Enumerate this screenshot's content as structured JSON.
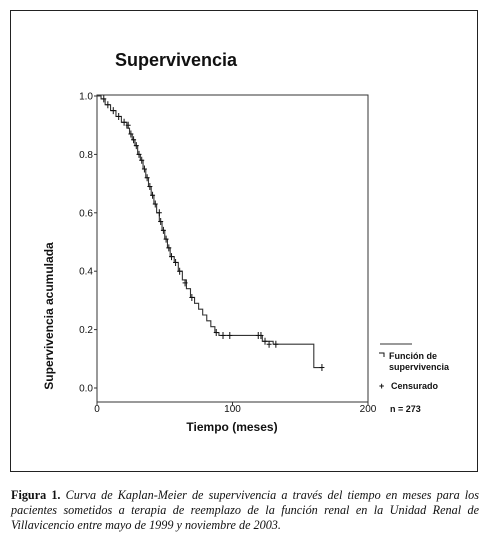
{
  "chart_data": {
    "type": "line",
    "title": "Supervivencia",
    "xlabel": "Tiempo (meses)",
    "ylabel": "Supervivencia acumulada",
    "xlim": [
      0,
      200
    ],
    "ylim": [
      0,
      1
    ],
    "x_ticks": [
      "0",
      "100",
      "200"
    ],
    "y_ticks": [
      "0.0",
      "0.2",
      "0.4",
      "0.6",
      "0.8",
      "1.0"
    ],
    "grid": false,
    "legend_position": "right",
    "line_color": "#333333",
    "legend": {
      "function_label": [
        "Función de",
        "supervivencia"
      ],
      "censored_label": "Censurado",
      "n_label": "n = 273"
    },
    "series": [
      {
        "name": "Función de supervivencia",
        "step": true,
        "points": [
          [
            0,
            1.0
          ],
          [
            3,
            0.99
          ],
          [
            6,
            0.97
          ],
          [
            10,
            0.95
          ],
          [
            14,
            0.93
          ],
          [
            18,
            0.91
          ],
          [
            22,
            0.89
          ],
          [
            24,
            0.87
          ],
          [
            26,
            0.85
          ],
          [
            28,
            0.83
          ],
          [
            30,
            0.8
          ],
          [
            32,
            0.78
          ],
          [
            34,
            0.75
          ],
          [
            36,
            0.72
          ],
          [
            38,
            0.69
          ],
          [
            40,
            0.66
          ],
          [
            42,
            0.63
          ],
          [
            44,
            0.6
          ],
          [
            46,
            0.57
          ],
          [
            48,
            0.54
          ],
          [
            50,
            0.51
          ],
          [
            52,
            0.48
          ],
          [
            54,
            0.45
          ],
          [
            57,
            0.43
          ],
          [
            60,
            0.4
          ],
          [
            63,
            0.37
          ],
          [
            66,
            0.34
          ],
          [
            69,
            0.31
          ],
          [
            72,
            0.29
          ],
          [
            75,
            0.27
          ],
          [
            78,
            0.25
          ],
          [
            81,
            0.23
          ],
          [
            84,
            0.21
          ],
          [
            87,
            0.19
          ],
          [
            90,
            0.18
          ],
          [
            120,
            0.18
          ],
          [
            122,
            0.16
          ],
          [
            130,
            0.15
          ],
          [
            160,
            0.15
          ],
          [
            160,
            0.07
          ],
          [
            166,
            0.07
          ]
        ],
        "censored": [
          [
            5,
            0.99
          ],
          [
            8,
            0.97
          ],
          [
            12,
            0.95
          ],
          [
            16,
            0.93
          ],
          [
            20,
            0.91
          ],
          [
            23,
            0.9
          ],
          [
            25,
            0.87
          ],
          [
            27,
            0.85
          ],
          [
            29,
            0.83
          ],
          [
            31,
            0.8
          ],
          [
            33,
            0.78
          ],
          [
            35,
            0.75
          ],
          [
            37,
            0.72
          ],
          [
            39,
            0.69
          ],
          [
            41,
            0.66
          ],
          [
            43,
            0.63
          ],
          [
            46,
            0.6
          ],
          [
            47,
            0.57
          ],
          [
            49,
            0.54
          ],
          [
            51,
            0.51
          ],
          [
            53,
            0.48
          ],
          [
            55,
            0.45
          ],
          [
            58,
            0.43
          ],
          [
            61,
            0.4
          ],
          [
            65,
            0.36
          ],
          [
            70,
            0.31
          ],
          [
            88,
            0.19
          ],
          [
            93,
            0.18
          ],
          [
            98,
            0.18
          ],
          [
            119,
            0.18
          ],
          [
            121,
            0.18
          ],
          [
            124,
            0.16
          ],
          [
            127,
            0.15
          ],
          [
            132,
            0.15
          ],
          [
            166,
            0.07
          ]
        ]
      }
    ]
  },
  "caption": {
    "label": "Figura 1.",
    "text": "Curva de Kaplan-Meier de supervivencia a través del tiempo en meses para los pacientes sometidos a terapia de reemplazo de la función renal en la Unidad Renal de Villavicencio entre mayo de 1999 y noviembre de 2003."
  }
}
